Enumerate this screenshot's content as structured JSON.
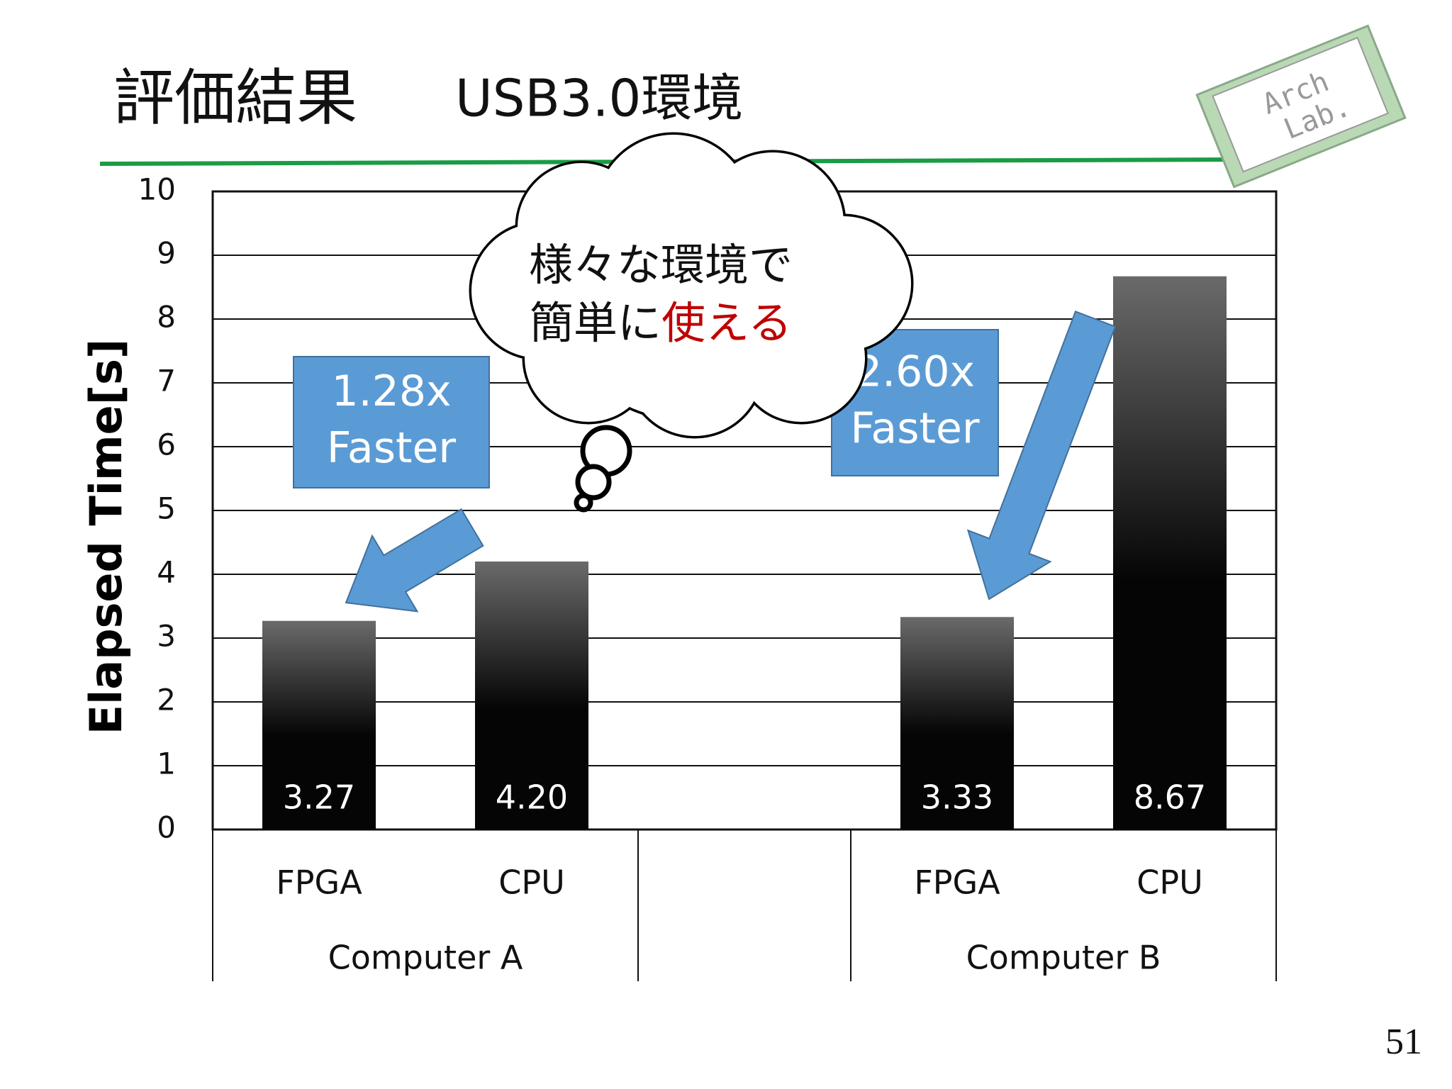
{
  "chart_data": {
    "type": "bar",
    "title": "評価結果",
    "subtitle": "USB3.0環境",
    "y_label": "Elapsed Time[s]",
    "categories": [
      "FPGA",
      "CPU",
      null,
      "FPGA",
      "CPU"
    ],
    "groups": [
      "Computer A",
      "Computer B"
    ],
    "values": [
      3.27,
      4.2,
      null,
      3.33,
      8.67
    ],
    "value_labels": [
      "3.27",
      "4.20",
      null,
      "3.33",
      "8.67"
    ],
    "color": "#050505",
    "ylim": [
      0,
      10
    ],
    "yticks": [
      0,
      1,
      2,
      3,
      4,
      5,
      6,
      7,
      8,
      9,
      10
    ],
    "grid": true,
    "annotations": [
      [
        "1.28x",
        "Faster"
      ],
      [
        "2.60x",
        "Faster"
      ]
    ],
    "callout": {
      "line1": "様々な環境で",
      "line2": "簡単に",
      "line2_emphasis": "使える"
    }
  },
  "logo": [
    "Arch",
    "Lab."
  ],
  "page_number": "51"
}
